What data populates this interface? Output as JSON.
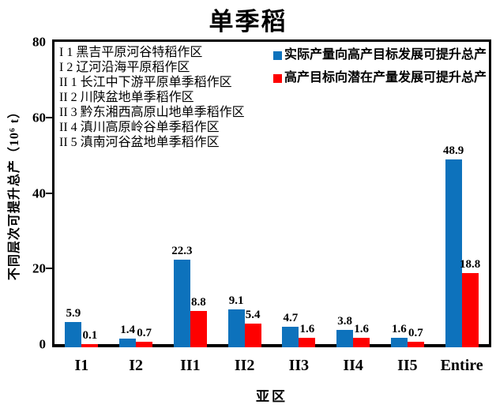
{
  "title": "单季稻",
  "colors": {
    "series_blue": "#0D72BC",
    "series_red": "#FE0000",
    "axis": "#000000",
    "background": "#FFFFFF"
  },
  "region_legend": {
    "items": [
      "I 1 黑吉平原河谷特稻作区",
      "I 2 辽河沿海平原稻作区",
      "II 1 长江中下游平原单季稻作区",
      "II 2 川陕盆地单季稻作区",
      "II 3 黔东湘西高原山地单季稻作区",
      "II 4 滇川高原岭谷单季稻作区",
      "II 5 滇南河谷盆地单季稻作区"
    ]
  },
  "chart_data": {
    "type": "bar",
    "title": "单季稻",
    "categories": [
      "I1",
      "I2",
      "II1",
      "II2",
      "II3",
      "II4",
      "II5",
      "Entire"
    ],
    "series": [
      {
        "name": "实际产量向高产目标发展可提升总产",
        "color": "#0D72BC",
        "values": [
          5.9,
          1.4,
          22.3,
          9.1,
          4.7,
          3.8,
          1.6,
          48.9
        ]
      },
      {
        "name": "高产目标向潜在产量发展可提升总产",
        "color": "#FE0000",
        "values": [
          0.1,
          0.7,
          8.8,
          5.4,
          1.6,
          1.6,
          0.7,
          18.8
        ]
      }
    ],
    "xlabel": "亚区",
    "ylabel": "不同层次可提升总产（10⁶ t）",
    "ylim": [
      0,
      80
    ],
    "yticks": [
      0,
      20,
      40,
      60,
      80
    ],
    "grid": false,
    "legend_position": "top-right",
    "data_labels": true
  }
}
